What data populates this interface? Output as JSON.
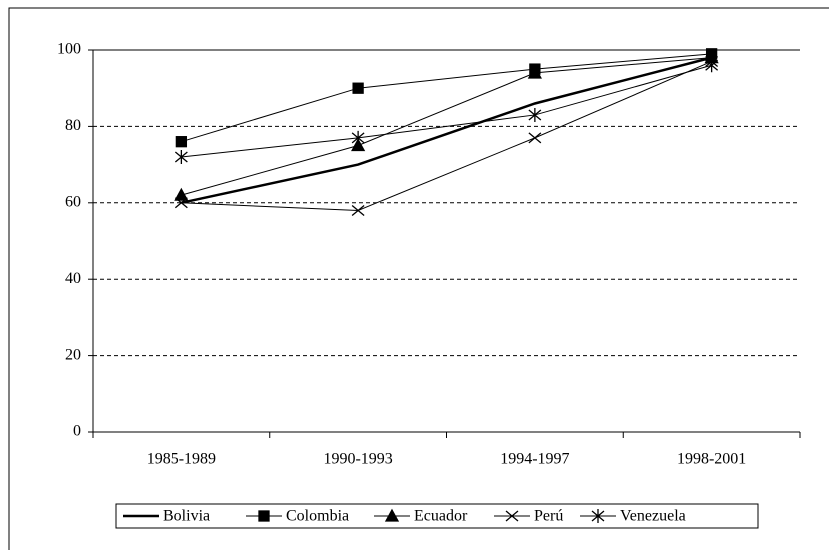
{
  "chart_data": {
    "type": "line",
    "categories": [
      "1985-1989",
      "1990-1993",
      "1994-1997",
      "1998-2001"
    ],
    "series": [
      {
        "name": "Bolivia",
        "color": "#000000",
        "marker": "none",
        "line_width": 2.5,
        "values": [
          60,
          70,
          86,
          98
        ]
      },
      {
        "name": "Colombia",
        "color": "#000000",
        "marker": "square",
        "line_width": 1,
        "values": [
          76,
          90,
          95,
          99
        ]
      },
      {
        "name": "Ecuador",
        "color": "#000000",
        "marker": "triangle",
        "line_width": 1,
        "values": [
          62,
          75,
          94,
          98
        ]
      },
      {
        "name": "Perú",
        "color": "#000000",
        "marker": "x",
        "line_width": 1,
        "values": [
          60,
          58,
          77,
          97
        ]
      },
      {
        "name": "Venezuela",
        "color": "#000000",
        "marker": "star",
        "line_width": 1,
        "values": [
          72,
          77,
          83,
          96
        ]
      }
    ],
    "ylim": [
      0,
      100
    ],
    "yticks": [
      0,
      20,
      40,
      60,
      80,
      100
    ],
    "grid": true,
    "legend": "bottom"
  }
}
